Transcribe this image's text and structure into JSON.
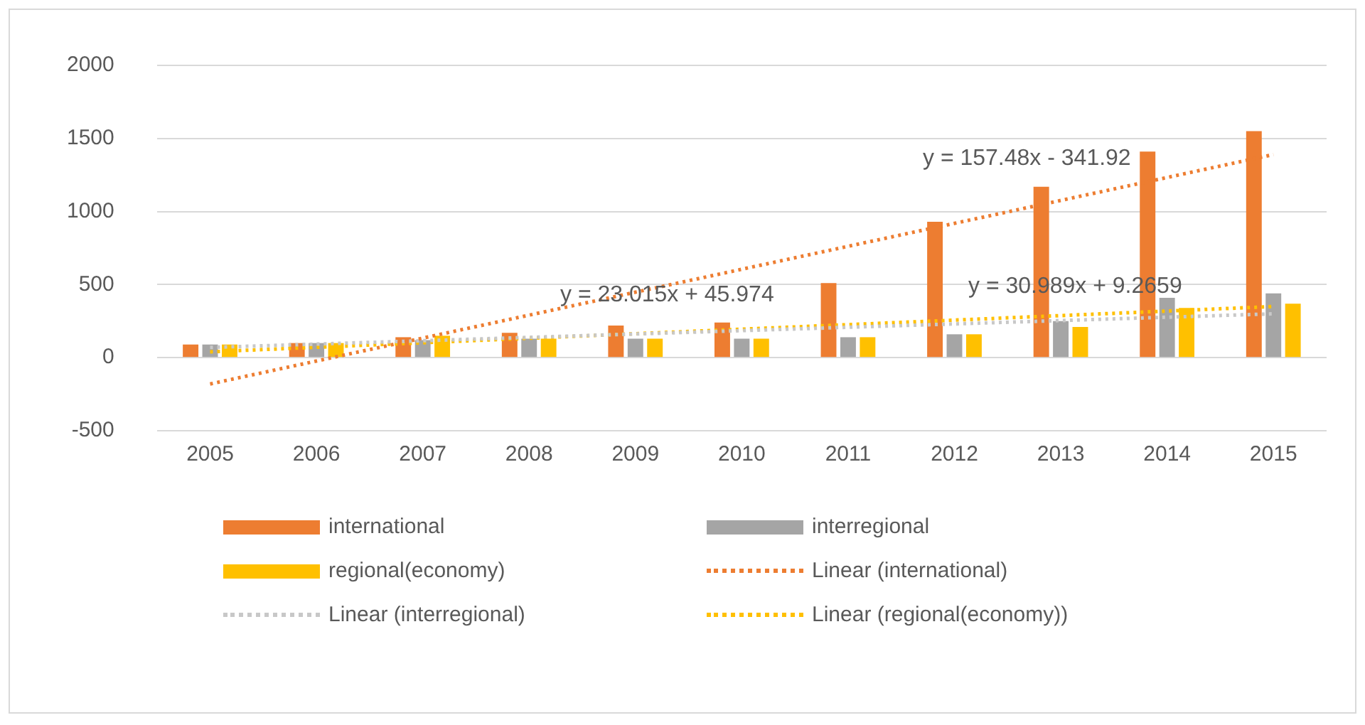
{
  "chart_data": {
    "type": "bar",
    "categories": [
      "2005",
      "2006",
      "2007",
      "2008",
      "2009",
      "2010",
      "2011",
      "2012",
      "2013",
      "2014",
      "2015"
    ],
    "series": [
      {
        "name": "international",
        "color": "#ed7d31",
        "values": [
          90,
          100,
          140,
          170,
          220,
          240,
          510,
          930,
          1170,
          1410,
          1550
        ]
      },
      {
        "name": "interregional",
        "color": "#a5a5a5",
        "values": [
          90,
          100,
          120,
          130,
          130,
          130,
          140,
          160,
          250,
          410,
          440
        ]
      },
      {
        "name": "regional(economy)",
        "color": "#ffc000",
        "values": [
          90,
          100,
          150,
          130,
          130,
          130,
          140,
          160,
          210,
          340,
          370
        ]
      },
      {
        "name": "Linear (international)",
        "type": "line",
        "color": "#ed7d31",
        "line_style": "dotted",
        "marker": "none",
        "values": [
          -180,
          null,
          null,
          null,
          null,
          null,
          null,
          null,
          null,
          null,
          1390
        ]
      },
      {
        "name": "Linear (interregional)",
        "type": "line",
        "color": "#c8c8c8",
        "line_style": "dotted",
        "marker": "none",
        "values": [
          70,
          null,
          null,
          null,
          null,
          null,
          null,
          null,
          null,
          null,
          300
        ]
      },
      {
        "name": "Linear (regional(economy))",
        "type": "line",
        "color": "#ffc000",
        "line_style": "dotted",
        "marker": "none",
        "values": [
          40,
          null,
          null,
          null,
          null,
          null,
          null,
          null,
          null,
          null,
          350
        ]
      }
    ],
    "ylim": [
      -500,
      2000
    ],
    "yticks": [
      -500,
      0,
      500,
      1000,
      1500,
      2000
    ],
    "grid": "y",
    "legend": "bottom",
    "annotations": [
      "y = 157.48x - 341.92",
      "y = 23.015x + 45.974",
      "y = 30.989x + 9.2659"
    ]
  }
}
